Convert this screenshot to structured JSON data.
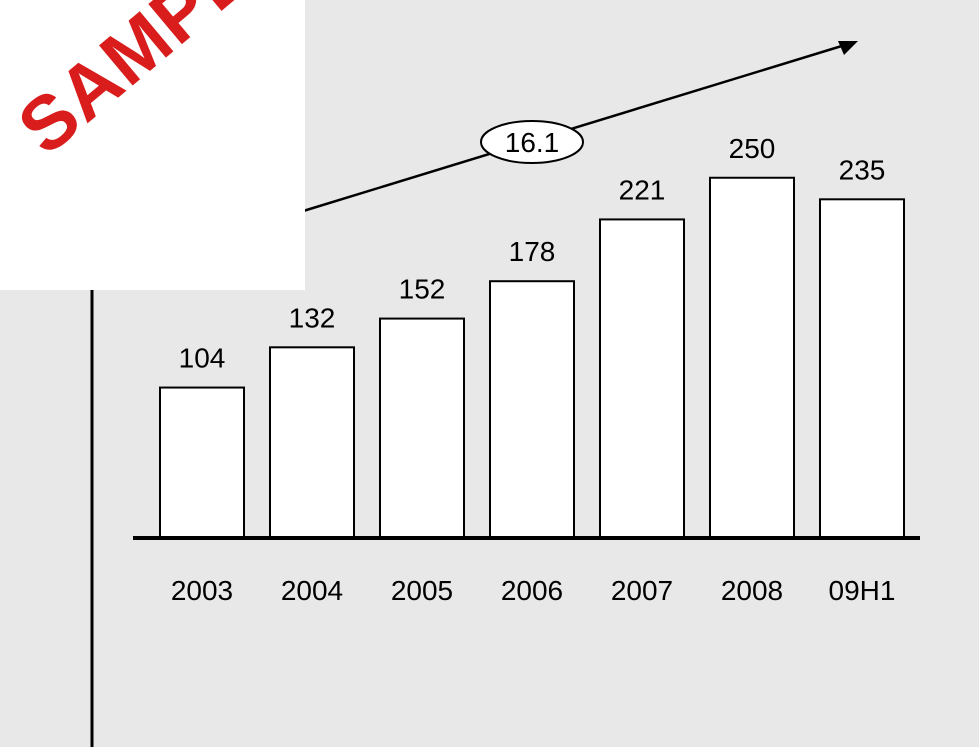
{
  "chart_data": {
    "type": "bar",
    "categories": [
      "2003",
      "2004",
      "2005",
      "2006",
      "2007",
      "2008",
      "09H1"
    ],
    "values": [
      104,
      132,
      152,
      178,
      221,
      250,
      235
    ],
    "title": "",
    "xlabel": "",
    "ylabel": "",
    "ylim": [
      0,
      250
    ],
    "grid": false,
    "legend": "none",
    "trend_annotation": "16.1",
    "colors": {
      "bar_fill": "#ffffff",
      "bar_stroke": "#000000",
      "background": "#e8e8e8",
      "watermark": "#d91c1c"
    }
  },
  "watermark": {
    "text": "SAMPLE"
  }
}
